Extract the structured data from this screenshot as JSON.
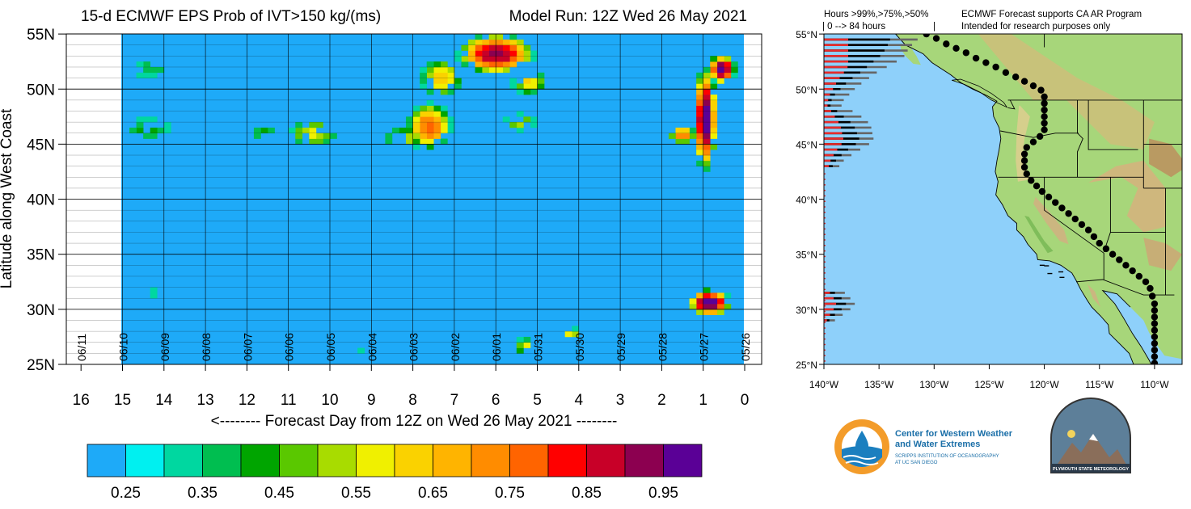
{
  "header": {
    "title": "15-d ECMWF EPS Prob of IVT>150 kg/(ms)",
    "model_run": "Model Run: 12Z Wed 26 May 2021"
  },
  "chart_data": [
    {
      "type": "heatmap",
      "title": "15-d ECMWF EPS Prob of IVT>150 kg/(ms)",
      "subtitle": "Model Run: 12Z Wed 26 May 2021",
      "ylabel": "Latitude along West Coast",
      "xlabel": "<-------- Forecast Day from 12Z on Wed 26 May 2021 --------",
      "xlim": [
        16,
        0
      ],
      "ylim": [
        25,
        55
      ],
      "x_ticks": [
        "16",
        "15",
        "14",
        "13",
        "12",
        "11",
        "10",
        "9",
        "8",
        "7",
        "6",
        "5",
        "4",
        "3",
        "2",
        "1",
        "0"
      ],
      "y_ticks": [
        "25N",
        "30N",
        "35N",
        "40N",
        "45N",
        "50N",
        "55N"
      ],
      "date_labels": [
        {
          "day": 16,
          "label": "06/11"
        },
        {
          "day": 15,
          "label": "06/10"
        },
        {
          "day": 14,
          "label": "06/09"
        },
        {
          "day": 13,
          "label": "06/08"
        },
        {
          "day": 12,
          "label": "06/07"
        },
        {
          "day": 11,
          "label": "06/06"
        },
        {
          "day": 10,
          "label": "06/05"
        },
        {
          "day": 9,
          "label": "06/04"
        },
        {
          "day": 8,
          "label": "06/03"
        },
        {
          "day": 7,
          "label": "06/02"
        },
        {
          "day": 6,
          "label": "06/01"
        },
        {
          "day": 5,
          "label": "05/31"
        },
        {
          "day": 4,
          "label": "05/30"
        },
        {
          "day": 3,
          "label": "05/29"
        },
        {
          "day": 2,
          "label": "05/28"
        },
        {
          "day": 1,
          "label": "05/27"
        },
        {
          "day": 0,
          "label": "05/26"
        }
      ],
      "colorbar": {
        "tick_labels": [
          "0.25",
          "0.35",
          "0.45",
          "0.55",
          "0.65",
          "0.75",
          "0.85",
          "0.95"
        ],
        "colors": [
          "#1eaaf8",
          "#00f0f0",
          "#00d7a0",
          "#00be50",
          "#00a500",
          "#5ac800",
          "#a8dc00",
          "#f0f000",
          "#fad200",
          "#ffb400",
          "#ff8c00",
          "#ff6400",
          "#ff0000",
          "#c80028",
          "#8c0050",
          "#5a0096"
        ]
      },
      "background_color": "#1eaaf8",
      "blobs": [
        {
          "name": "upper-center",
          "day": 6.0,
          "lat": 53.2,
          "day_radius": 1.0,
          "lat_radius": 2.0,
          "peak": 0.93
        },
        {
          "name": "upper-center-east",
          "day": 7.3,
          "lat": 51.0,
          "day_radius": 0.6,
          "lat_radius": 2.0,
          "peak": 0.65
        },
        {
          "name": "upper-center-west",
          "day": 5.2,
          "lat": 50.6,
          "day_radius": 0.5,
          "lat_radius": 1.3,
          "peak": 0.62
        },
        {
          "name": "day8-mid",
          "day": 7.6,
          "lat": 46.6,
          "day_radius": 0.6,
          "lat_radius": 2.4,
          "peak": 0.78
        },
        {
          "name": "day8-trail",
          "day": 8.2,
          "lat": 45.5,
          "day_radius": 0.6,
          "lat_radius": 1.4,
          "peak": 0.55
        },
        {
          "name": "day10",
          "day": 10.4,
          "lat": 46.0,
          "day_radius": 0.7,
          "lat_radius": 1.5,
          "peak": 0.58
        },
        {
          "name": "day11-12",
          "day": 11.6,
          "lat": 46.0,
          "day_radius": 0.5,
          "lat_radius": 1.0,
          "peak": 0.45
        },
        {
          "name": "day14-mid",
          "day": 14.4,
          "lat": 46.3,
          "day_radius": 0.9,
          "lat_radius": 1.6,
          "peak": 0.43
        },
        {
          "name": "day14-upper",
          "day": 14.3,
          "lat": 51.8,
          "day_radius": 0.8,
          "lat_radius": 1.6,
          "peak": 0.38
        },
        {
          "name": "day5-6-mid",
          "day": 5.4,
          "lat": 47.0,
          "day_radius": 0.5,
          "lat_radius": 1.0,
          "peak": 0.53
        },
        {
          "name": "day1-ridge",
          "day": 0.95,
          "lat": 47.3,
          "day_radius": 0.3,
          "lat_radius": 5.0,
          "peak": 1.0
        },
        {
          "name": "day1-north",
          "day": 0.55,
          "lat": 51.8,
          "day_radius": 0.35,
          "lat_radius": 1.4,
          "peak": 1.0
        },
        {
          "name": "day1-west",
          "day": 1.5,
          "lat": 45.9,
          "day_radius": 0.35,
          "lat_radius": 1.0,
          "peak": 0.75
        },
        {
          "name": "day1-south",
          "day": 0.85,
          "lat": 30.6,
          "day_radius": 0.55,
          "lat_radius": 1.3,
          "peak": 1.0
        },
        {
          "name": "day14-south",
          "day": 14.3,
          "lat": 31.5,
          "day_radius": 0.3,
          "lat_radius": 0.7,
          "peak": 0.37
        },
        {
          "name": "day5-bottom",
          "day": 5.3,
          "lat": 26.6,
          "day_radius": 0.25,
          "lat_radius": 1.0,
          "peak": 0.58
        },
        {
          "name": "day4-bottom",
          "day": 4.2,
          "lat": 27.6,
          "day_radius": 0.25,
          "lat_radius": 1.0,
          "peak": 0.62
        },
        {
          "name": "day9-bottom",
          "day": 9.2,
          "lat": 26.2,
          "day_radius": 0.2,
          "lat_radius": 0.9,
          "peak": 0.36
        }
      ]
    },
    {
      "type": "map",
      "header_left_1": "Hours >99%,>75%,>50%",
      "header_left_2": "| 0 --> 84 hours",
      "header_left_3": "|",
      "header_right_1": "ECMWF Forecast supports CA AR Program",
      "header_right_2": "Intended for research purposes only",
      "lat_ticks": [
        "25°N",
        "30°N",
        "35°N",
        "40°N",
        "45°N",
        "50°N",
        "55°N"
      ],
      "lon_ticks": [
        "140°W",
        "135°W",
        "130°W",
        "125°W",
        "120°W",
        "115°W",
        "110°W"
      ],
      "ocean_color": "#8ed0fa",
      "land_color": "#a7d67a",
      "coast_dots": [
        {
          "lon": -130.7,
          "lat": 55.0
        },
        {
          "lon": -129.8,
          "lat": 54.6
        },
        {
          "lon": -128.9,
          "lat": 54.1
        },
        {
          "lon": -128.0,
          "lat": 53.7
        },
        {
          "lon": -127.1,
          "lat": 53.3
        },
        {
          "lon": -126.2,
          "lat": 52.8
        },
        {
          "lon": -125.3,
          "lat": 52.4
        },
        {
          "lon": -124.4,
          "lat": 52.0
        },
        {
          "lon": -123.5,
          "lat": 51.5
        },
        {
          "lon": -122.6,
          "lat": 51.1
        },
        {
          "lon": -121.8,
          "lat": 50.7
        },
        {
          "lon": -121.0,
          "lat": 50.3
        },
        {
          "lon": -120.3,
          "lat": 49.9
        },
        {
          "lon": -120.0,
          "lat": 49.3
        },
        {
          "lon": -120.0,
          "lat": 48.7
        },
        {
          "lon": -120.0,
          "lat": 48.1
        },
        {
          "lon": -120.0,
          "lat": 47.5
        },
        {
          "lon": -120.0,
          "lat": 46.9
        },
        {
          "lon": -120.0,
          "lat": 46.3
        },
        {
          "lon": -120.4,
          "lat": 45.7
        },
        {
          "lon": -121.0,
          "lat": 45.2
        },
        {
          "lon": -121.6,
          "lat": 44.7
        },
        {
          "lon": -121.8,
          "lat": 44.1
        },
        {
          "lon": -121.8,
          "lat": 43.5
        },
        {
          "lon": -121.8,
          "lat": 42.9
        },
        {
          "lon": -121.6,
          "lat": 42.3
        },
        {
          "lon": -121.2,
          "lat": 41.7
        },
        {
          "lon": -120.7,
          "lat": 41.2
        },
        {
          "lon": -120.2,
          "lat": 40.7
        },
        {
          "lon": -119.6,
          "lat": 40.2
        },
        {
          "lon": -119.0,
          "lat": 39.7
        },
        {
          "lon": -118.4,
          "lat": 39.2
        },
        {
          "lon": -117.8,
          "lat": 38.7
        },
        {
          "lon": -117.2,
          "lat": 38.2
        },
        {
          "lon": -116.6,
          "lat": 37.7
        },
        {
          "lon": -116.0,
          "lat": 37.2
        },
        {
          "lon": -115.5,
          "lat": 36.6
        },
        {
          "lon": -115.0,
          "lat": 36.0
        },
        {
          "lon": -114.4,
          "lat": 35.5
        },
        {
          "lon": -113.8,
          "lat": 35.0
        },
        {
          "lon": -113.2,
          "lat": 34.5
        },
        {
          "lon": -112.6,
          "lat": 34.0
        },
        {
          "lon": -112.0,
          "lat": 33.5
        },
        {
          "lon": -111.4,
          "lat": 33.0
        },
        {
          "lon": -110.8,
          "lat": 32.5
        },
        {
          "lon": -110.4,
          "lat": 31.9
        },
        {
          "lon": -110.2,
          "lat": 31.2
        },
        {
          "lon": -110.0,
          "lat": 30.5
        },
        {
          "lon": -110.0,
          "lat": 29.9
        },
        {
          "lon": -110.0,
          "lat": 29.3
        },
        {
          "lon": -110.0,
          "lat": 28.7
        },
        {
          "lon": -110.0,
          "lat": 28.1
        },
        {
          "lon": -110.0,
          "lat": 27.5
        },
        {
          "lon": -110.0,
          "lat": 26.9
        },
        {
          "lon": -110.0,
          "lat": 26.3
        },
        {
          "lon": -110.0,
          "lat": 25.7
        },
        {
          "lon": -110.0,
          "lat": 25.1
        }
      ],
      "hour_bars": [
        {
          "lat": 54.5,
          "black": 6.0,
          "gray": 8.5
        },
        {
          "lat": 54.0,
          "black": 5.8,
          "gray": 8.0
        },
        {
          "lat": 53.5,
          "black": 5.5,
          "gray": 7.6
        },
        {
          "lat": 53.0,
          "black": 5.1,
          "gray": 7.3
        },
        {
          "lat": 52.5,
          "black": 4.5,
          "gray": 6.6
        },
        {
          "lat": 52.0,
          "black": 3.9,
          "gray": 5.7
        },
        {
          "lat": 51.5,
          "black": 3.3,
          "gray": 4.8
        },
        {
          "lat": 51.0,
          "black": 2.6,
          "gray": 4.1
        },
        {
          "lat": 50.5,
          "black": 2.0,
          "gray": 3.4
        },
        {
          "lat": 50.0,
          "black": 1.5,
          "gray": 2.8
        },
        {
          "lat": 49.5,
          "black": 1.0,
          "gray": 2.3
        },
        {
          "lat": 49.0,
          "black": 0.7,
          "gray": 1.8
        },
        {
          "lat": 48.5,
          "black": 0.6,
          "gray": 1.6
        },
        {
          "lat": 48.0,
          "black": 1.2,
          "gray": 2.6
        },
        {
          "lat": 47.5,
          "black": 1.8,
          "gray": 3.4
        },
        {
          "lat": 47.0,
          "black": 2.4,
          "gray": 4.0
        },
        {
          "lat": 46.5,
          "black": 2.8,
          "gray": 4.3
        },
        {
          "lat": 46.0,
          "black": 3.0,
          "gray": 4.4
        },
        {
          "lat": 45.5,
          "black": 3.2,
          "gray": 4.5
        },
        {
          "lat": 45.0,
          "black": 2.9,
          "gray": 4.1
        },
        {
          "lat": 44.5,
          "black": 2.2,
          "gray": 3.3
        },
        {
          "lat": 44.0,
          "black": 1.6,
          "gray": 2.5
        },
        {
          "lat": 43.5,
          "black": 1.1,
          "gray": 1.8
        },
        {
          "lat": 43.0,
          "black": 0.8,
          "gray": 1.4
        },
        {
          "lat": 31.5,
          "black": 1.0,
          "gray": 1.9
        },
        {
          "lat": 31.0,
          "black": 1.6,
          "gray": 2.4
        },
        {
          "lat": 30.5,
          "black": 2.0,
          "gray": 2.8
        },
        {
          "lat": 30.0,
          "black": 1.6,
          "gray": 2.4
        },
        {
          "lat": 29.5,
          "black": 1.0,
          "gray": 1.7
        },
        {
          "lat": 29.0,
          "black": 0.5,
          "gray": 1.0
        }
      ]
    }
  ],
  "logos": {
    "cw3e_line1": "Center for Western Weather",
    "cw3e_line2": "and Water Extremes",
    "cw3e_line3": "SCRIPPS INSTITUTION OF OCEANOGRAPHY",
    "cw3e_line4": "AT UC SAN DIEGO",
    "psu_text": "PLYMOUTH STATE METEOROLOGY"
  }
}
